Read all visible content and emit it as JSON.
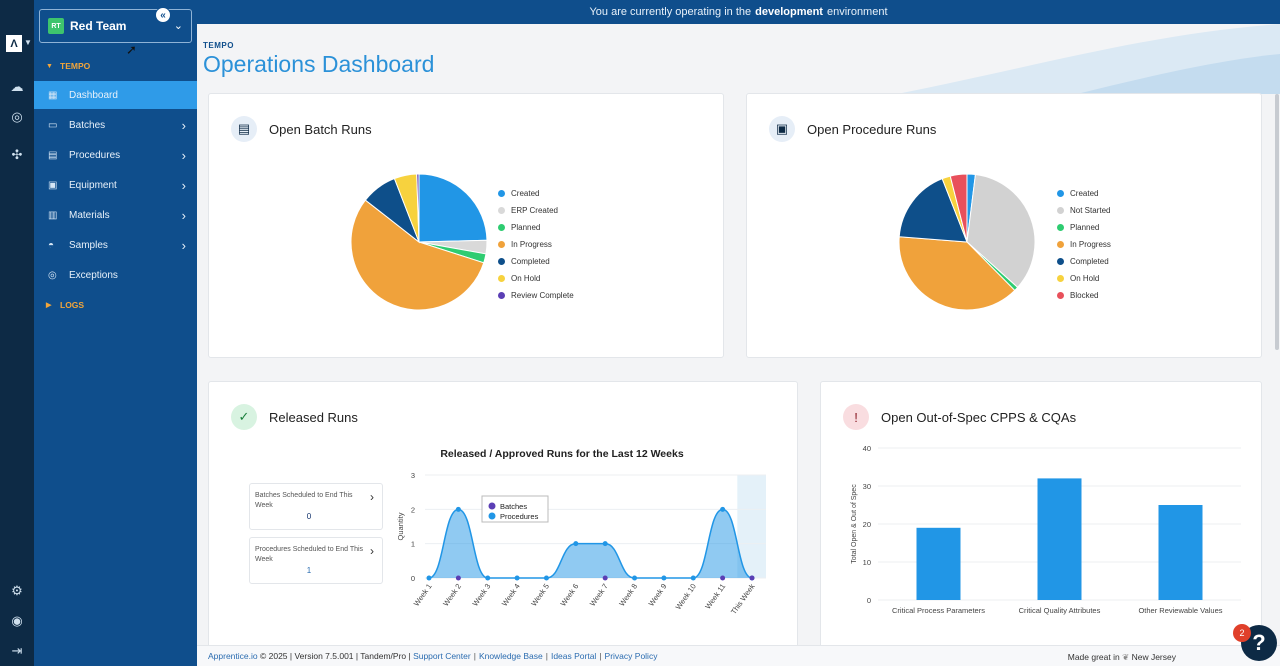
{
  "banner": {
    "prefix": "You are currently operating in the",
    "env": "development",
    "suffix": "environment"
  },
  "rail": {
    "logo": "Λ",
    "icons": [
      "cloud-icon",
      "target-icon",
      "network-icon",
      "gear-icon",
      "user-icon",
      "logout-icon"
    ]
  },
  "sidebar": {
    "team_badge": "RT",
    "team_name": "Red Team",
    "section_tempo": "TEMPO",
    "section_logs": "LOGS",
    "items": [
      {
        "label": "Dashboard",
        "icon": "▦",
        "chev": ""
      },
      {
        "label": "Batches",
        "icon": "▭",
        "chev": "›"
      },
      {
        "label": "Procedures",
        "icon": "▤",
        "chev": "›"
      },
      {
        "label": "Equipment",
        "icon": "▣",
        "chev": "›"
      },
      {
        "label": "Materials",
        "icon": "▥",
        "chev": "›"
      },
      {
        "label": "Samples",
        "icon": "◓",
        "chev": "›"
      },
      {
        "label": "Exceptions",
        "icon": "◎",
        "chev": ""
      }
    ]
  },
  "header": {
    "breadcrumb": "TEMPO",
    "title": "Operations Dashboard"
  },
  "batch_runs": {
    "title": "Open Batch Runs",
    "legend": [
      {
        "label": "Created",
        "color": "#2196e6"
      },
      {
        "label": "ERP Created",
        "color": "#d9d9d9"
      },
      {
        "label": "Planned",
        "color": "#2ecc71"
      },
      {
        "label": "In Progress",
        "color": "#f0a23b"
      },
      {
        "label": "Completed",
        "color": "#0e4f8a"
      },
      {
        "label": "On Hold",
        "color": "#f7d23e"
      },
      {
        "label": "Review Complete",
        "color": "#5b3fb5"
      }
    ]
  },
  "procedure_runs": {
    "title": "Open Procedure Runs",
    "legend": [
      {
        "label": "Created",
        "color": "#2196e6"
      },
      {
        "label": "Not Started",
        "color": "#d2d2d2"
      },
      {
        "label": "Planned",
        "color": "#2ecc71"
      },
      {
        "label": "In Progress",
        "color": "#f0a23b"
      },
      {
        "label": "Completed",
        "color": "#0e4f8a"
      },
      {
        "label": "On Hold",
        "color": "#f7d23e"
      },
      {
        "label": "Blocked",
        "color": "#e8505b"
      }
    ]
  },
  "released": {
    "title": "Released Runs",
    "batches_label": "Batches Scheduled to End This Week",
    "batches_value": "0",
    "procedures_label": "Procedures Scheduled to End This Week",
    "procedures_value": "1"
  },
  "oos": {
    "title": "Open Out-of-Spec CPPS & CQAs"
  },
  "chart_data": [
    {
      "type": "pie",
      "title": "Open Batch Runs",
      "categories": [
        "Created",
        "ERP Created",
        "Planned",
        "In Progress",
        "Completed",
        "On Hold",
        "Review Complete"
      ],
      "values": [
        23,
        3,
        2,
        52,
        8,
        5,
        0.5
      ]
    },
    {
      "type": "pie",
      "title": "Open Procedure Runs",
      "categories": [
        "Created",
        "Not Started",
        "Planned",
        "In Progress",
        "Completed",
        "On Hold",
        "Blocked"
      ],
      "values": [
        2,
        35,
        1,
        39,
        18,
        2,
        4
      ]
    },
    {
      "type": "area",
      "title": "Released / Approved Runs for the Last 12 Weeks",
      "xlabel": "",
      "ylabel": "Quantity",
      "ylim": [
        0,
        3
      ],
      "yticks": [
        0,
        1,
        2,
        3
      ],
      "categories": [
        "Week 1",
        "Week 2",
        "Week 3",
        "Week 4",
        "Week 5",
        "Week 6",
        "Week 7",
        "Week 8",
        "Week 9",
        "Week 10",
        "Week 11",
        "This Week"
      ],
      "series": [
        {
          "name": "Batches",
          "color": "#5b3fb5",
          "values": [
            0,
            0,
            0,
            0,
            0,
            0,
            0,
            0,
            0,
            0,
            0,
            0
          ]
        },
        {
          "name": "Procedures",
          "color": "#2196e6",
          "values": [
            0,
            2,
            0,
            0,
            0,
            1,
            1,
            0,
            0,
            0,
            2,
            0
          ]
        }
      ]
    },
    {
      "type": "bar",
      "title": "Open Out-of-Spec CPPS & CQAs",
      "ylabel": "Total Open & Out of Spec",
      "ylim": [
        0,
        40
      ],
      "yticks": [
        0,
        10,
        20,
        30,
        40
      ],
      "categories": [
        "Critical Process Parameters",
        "Critical Quality Attributes",
        "Other Reviewable Values"
      ],
      "values": [
        19,
        32,
        25
      ]
    }
  ],
  "footer": {
    "brand": "Apprentice.io",
    "copy": " © 2025 | Version 7.5.001 | Tandem/Pro | ",
    "links": [
      "Support Center",
      "Knowledge Base",
      "Ideas Portal",
      "Privacy Policy"
    ],
    "made_prefix": "Made great in",
    "made_place": "New Jersey"
  },
  "help": {
    "label": "?",
    "badge": "2"
  }
}
